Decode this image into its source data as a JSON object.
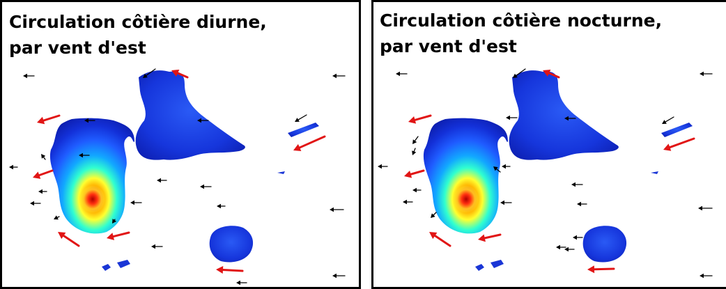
{
  "panels": [
    {
      "title_line1": "Circulation côtière diurne,",
      "title_line2": "par vent d'est"
    },
    {
      "title_line1": "Circulation côtière nocturne,",
      "title_line2": "par vent d'est"
    }
  ],
  "colors": {
    "red_arrow": "#e11515",
    "black_arrow": "#000000",
    "island_deep": "#0a1fb4",
    "border": "#000000"
  }
}
